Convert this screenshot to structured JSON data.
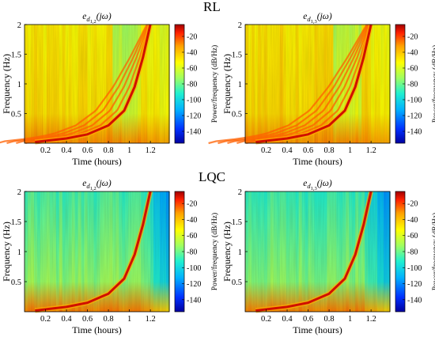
{
  "sections": [
    {
      "title": "RL"
    },
    {
      "title": "LQC"
    }
  ],
  "chart_data": [
    {
      "type": "heatmap",
      "title": "e_{d_{1,2}}(jω)",
      "title_main": "e",
      "title_sub": "d",
      "title_subsub": "1,2",
      "title_arg": "(jω)",
      "xlabel": "Time (hours)",
      "ylabel": "Frequency (Hz)",
      "colorbar_label": "Power/frequency (dB/Hz)",
      "xticks": [
        0.2,
        0.4,
        0.6,
        0.8,
        1,
        1.2
      ],
      "yticks": [
        0.5,
        1,
        1.5,
        2
      ],
      "cticks": [
        -20,
        -40,
        -60,
        -80,
        -100,
        -120,
        -140
      ],
      "xlim": [
        0,
        1.38
      ],
      "ylim": [
        0,
        2
      ],
      "clim": [
        -155,
        -5
      ],
      "background_level_db": -45,
      "ridge_curve": {
        "t": [
          0.1,
          0.4,
          0.6,
          0.8,
          0.95,
          1.05,
          1.13,
          1.2
        ],
        "f": [
          0.02,
          0.08,
          0.15,
          0.3,
          0.55,
          0.95,
          1.45,
          2.0
        ]
      },
      "harmonics": 5
    },
    {
      "type": "heatmap",
      "title": "e_{d_{1,3}}(jω)",
      "title_main": "e",
      "title_sub": "d",
      "title_subsub": "1,3",
      "title_arg": "(jω)",
      "xlabel": "Time (hours)",
      "ylabel": "Frequency (Hz)",
      "colorbar_label": "Power/frequency (dB/Hz)",
      "xticks": [
        0.2,
        0.4,
        0.6,
        0.8,
        1,
        1.2
      ],
      "yticks": [
        0.5,
        1,
        1.5,
        2
      ],
      "cticks": [
        -20,
        -40,
        -60,
        -80,
        -100,
        -120,
        -140
      ],
      "xlim": [
        0,
        1.38
      ],
      "ylim": [
        0,
        2
      ],
      "clim": [
        -155,
        -5
      ],
      "background_level_db": -42,
      "ridge_curve": {
        "t": [
          0.1,
          0.4,
          0.6,
          0.8,
          0.95,
          1.05,
          1.13,
          1.2
        ],
        "f": [
          0.02,
          0.08,
          0.15,
          0.3,
          0.55,
          0.95,
          1.45,
          2.0
        ]
      },
      "harmonics": 6
    },
    {
      "type": "heatmap",
      "title": "e_{d_{1,2}}(jω)",
      "title_main": "e",
      "title_sub": "d",
      "title_subsub": "1,2",
      "title_arg": "(jω)",
      "xlabel": "Time (hours)",
      "ylabel": "Frequency (Hz)",
      "colorbar_label": "Power/frequency (dB/Hz)",
      "xticks": [
        0.2,
        0.4,
        0.6,
        0.8,
        1,
        1.2
      ],
      "yticks": [
        0.5,
        1,
        1.5,
        2
      ],
      "cticks": [
        -20,
        -40,
        -60,
        -80,
        -100,
        -120,
        -140
      ],
      "xlim": [
        0,
        1.38
      ],
      "ylim": [
        0,
        2
      ],
      "clim": [
        -155,
        -5
      ],
      "background_level_db": -80,
      "ridge_curve": {
        "t": [
          0.1,
          0.4,
          0.6,
          0.8,
          0.95,
          1.05,
          1.13,
          1.2
        ],
        "f": [
          0.02,
          0.08,
          0.15,
          0.3,
          0.55,
          0.95,
          1.45,
          2.0
        ]
      },
      "harmonics": 1
    },
    {
      "type": "heatmap",
      "title": "e_{d_{1,3}}(jω)",
      "title_main": "e",
      "title_sub": "d",
      "title_subsub": "1,3",
      "title_arg": "(jω)",
      "xlabel": "Time (hours)",
      "ylabel": "Frequency (Hz)",
      "colorbar_label": "Power/frequency (dB/Hz)",
      "xticks": [
        0.2,
        0.4,
        0.6,
        0.8,
        1,
        1.2
      ],
      "yticks": [
        0.5,
        1,
        1.5,
        2
      ],
      "cticks": [
        -20,
        -40,
        -60,
        -80,
        -100,
        -120,
        -140
      ],
      "xlim": [
        0,
        1.38
      ],
      "ylim": [
        0,
        2
      ],
      "clim": [
        -155,
        -5
      ],
      "background_level_db": -82,
      "ridge_curve": {
        "t": [
          0.1,
          0.4,
          0.6,
          0.8,
          0.95,
          1.05,
          1.13,
          1.2
        ],
        "f": [
          0.02,
          0.08,
          0.15,
          0.3,
          0.55,
          0.95,
          1.45,
          2.0
        ]
      },
      "harmonics": 1
    }
  ]
}
